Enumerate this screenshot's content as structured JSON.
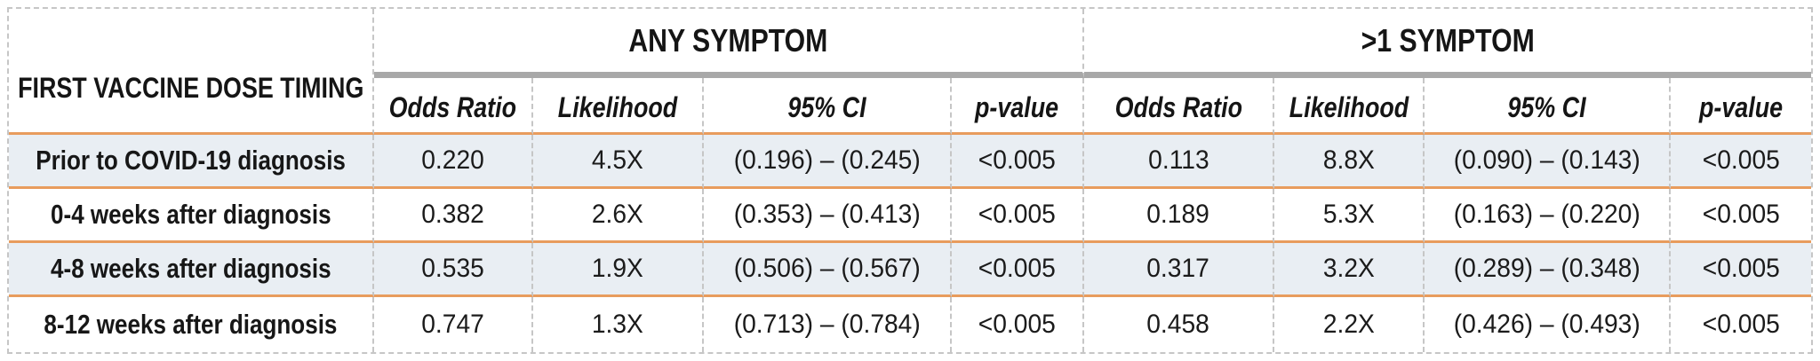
{
  "chart_data": {
    "type": "table",
    "row_header_label": "FIRST VACCINE DOSE TIMING",
    "column_groups": [
      "ANY SYMPTOM",
      ">1 SYMPTOM"
    ],
    "columns": [
      "Odds Ratio",
      "Likelihood",
      "95% CI",
      "p-value",
      "Odds Ratio",
      "Likelihood",
      "95% CI",
      "p-value"
    ],
    "rows": [
      {
        "label": "Prior to COVID-19 diagnosis",
        "values": [
          "0.220",
          "4.5X",
          "(0.196) – (0.245)",
          "<0.005",
          "0.113",
          "8.8X",
          "(0.090) – (0.143)",
          "<0.005"
        ]
      },
      {
        "label": "0-4 weeks after diagnosis",
        "values": [
          "0.382",
          "2.6X",
          "(0.353) – (0.413)",
          "<0.005",
          "0.189",
          "5.3X",
          "(0.163) – (0.220)",
          "<0.005"
        ]
      },
      {
        "label": "4-8 weeks after diagnosis",
        "values": [
          "0.535",
          "1.9X",
          "(0.506) – (0.567)",
          "<0.005",
          "0.317",
          "3.2X",
          "(0.289) – (0.348)",
          "<0.005"
        ]
      },
      {
        "label": "8-12 weeks after diagnosis",
        "values": [
          "0.747",
          "1.3X",
          "(0.713) – (0.784)",
          "<0.005",
          "0.458",
          "2.2X",
          "(0.426) – (0.493)",
          "<0.005"
        ]
      }
    ]
  },
  "colors": {
    "accent_orange": "#e89c5d",
    "header_rule_gray": "#a8a8a8",
    "row_shade": "#e9eef3",
    "dashed_border": "#c6c6c6"
  }
}
